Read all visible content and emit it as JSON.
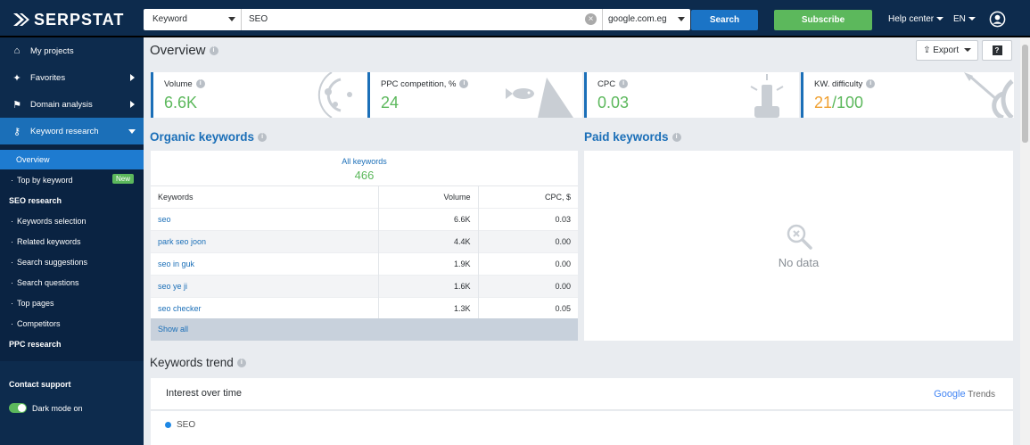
{
  "topbar": {
    "logo_text": "SERPSTAT",
    "search_type": "Keyword",
    "query": "SEO",
    "engine": "google.com.eg",
    "search_button": "Search",
    "subscribe_button": "Subscribe",
    "help_label": "Help center",
    "lang_label": "EN"
  },
  "sidebar": {
    "items": [
      {
        "label": "My projects",
        "icon": "home-icon"
      },
      {
        "label": "Favorites",
        "icon": "pin-icon"
      },
      {
        "label": "Domain analysis",
        "icon": "domain-icon"
      },
      {
        "label": "Keyword research",
        "icon": "key-icon"
      }
    ],
    "sub": {
      "overview": "Overview",
      "top_by_keyword": "Top by keyword",
      "new_badge": "New",
      "seo_head": "SEO research",
      "seo_items": [
        "Keywords selection",
        "Related keywords",
        "Search suggestions",
        "Search questions",
        "Top pages",
        "Competitors"
      ],
      "ppc_head": "PPC research"
    },
    "contact": "Contact support",
    "dark_mode": "Dark mode on"
  },
  "main": {
    "title": "Overview",
    "export_label": "Export",
    "help_label": "?",
    "cards": [
      {
        "label": "Volume",
        "value": "6.6K"
      },
      {
        "label": "PPC competition, %",
        "value": "24"
      },
      {
        "label": "CPC",
        "value": "0.03"
      },
      {
        "label": "KW. difficulty",
        "value_main": "21",
        "value_rest": "/100"
      }
    ],
    "organic": {
      "title": "Organic keywords",
      "all_label": "All keywords",
      "all_count": "466",
      "headers": [
        "Keywords",
        "Volume",
        "CPC, $"
      ],
      "rows": [
        [
          "seo",
          "6.6K",
          "0.03"
        ],
        [
          "park seo joon",
          "4.4K",
          "0.00"
        ],
        [
          "seo in guk",
          "1.9K",
          "0.00"
        ],
        [
          "seo ye ji",
          "1.6K",
          "0.00"
        ],
        [
          "seo checker",
          "1.3K",
          "0.05"
        ]
      ],
      "show_all": "Show all"
    },
    "paid": {
      "title": "Paid keywords",
      "no_data": "No data"
    },
    "trend": {
      "title": "Keywords trend",
      "interest": "Interest over time",
      "google": "Google",
      "trends": "Trends",
      "series": "SEO"
    }
  },
  "colors": {
    "navy": "#0d2b4d",
    "accent_blue": "#1b6fb8",
    "green": "#5cb85c",
    "orange": "#f0a030"
  }
}
